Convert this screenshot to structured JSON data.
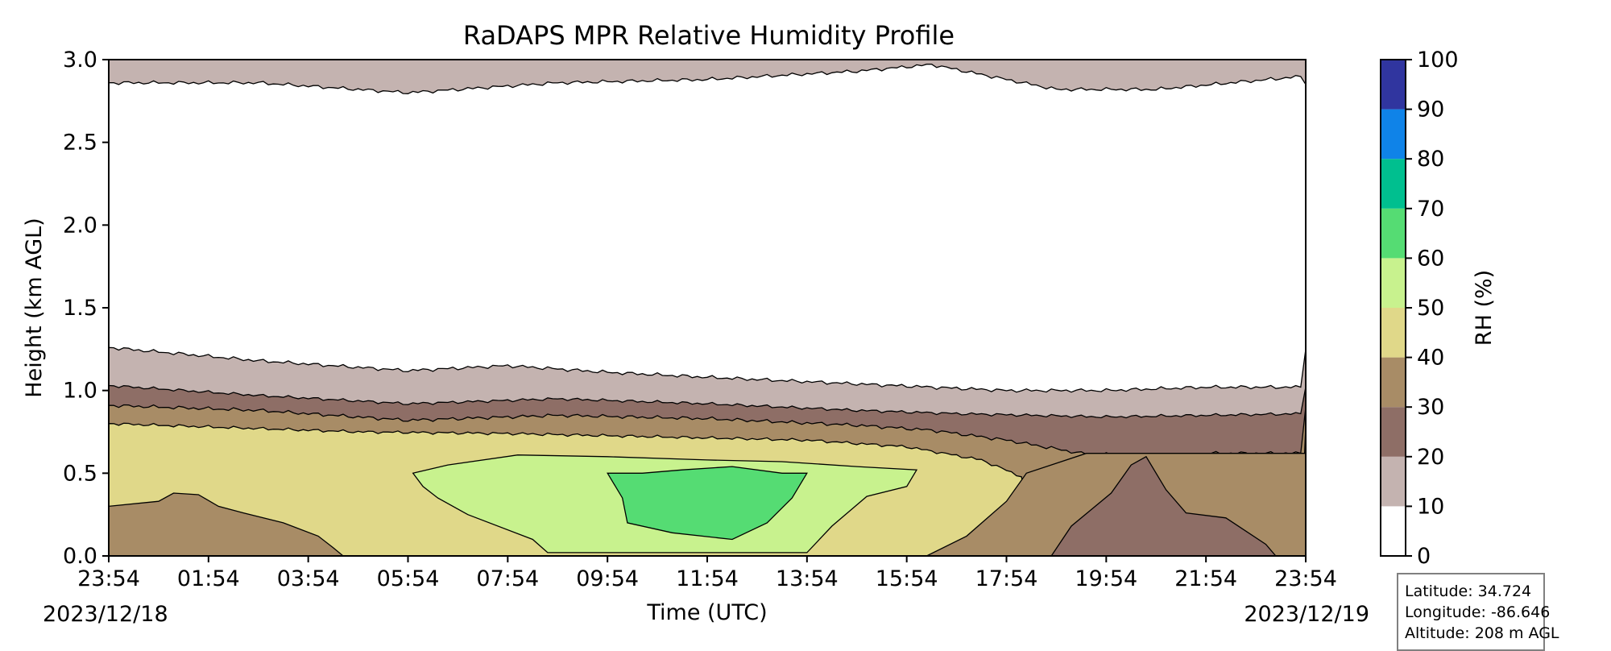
{
  "chart_data": {
    "type": "heatmap",
    "title": "RaDAPS MPR Relative Humidity Profile",
    "xlabel": "Time (UTC)",
    "ylabel": "Height (km AGL)",
    "x_tick_labels": [
      "23:54",
      "01:54",
      "03:54",
      "05:54",
      "07:54",
      "09:54",
      "11:54",
      "13:54",
      "15:54",
      "17:54",
      "19:54",
      "21:54",
      "23:54"
    ],
    "x_hours": [
      0,
      2,
      4,
      6,
      8,
      10,
      12,
      14,
      16,
      18,
      20,
      22,
      24
    ],
    "start_date": "2023/12/18",
    "end_date": "2023/12/19",
    "ylim": [
      0,
      3
    ],
    "y_ticks": [
      0.0,
      0.5,
      1.0,
      1.5,
      2.0,
      2.5,
      3.0
    ],
    "y_tick_labels": [
      "0.0",
      "0.5",
      "1.0",
      "1.5",
      "2.0",
      "2.5",
      "3.0"
    ],
    "colorbar": {
      "label": "RH (%)",
      "levels": [
        0,
        10,
        20,
        30,
        40,
        50,
        60,
        70,
        80,
        90,
        100
      ],
      "tick_labels": [
        "0",
        "10",
        "20",
        "30",
        "40",
        "50",
        "60",
        "70",
        "80",
        "90",
        "100"
      ],
      "colors": [
        "#ffffff",
        "#c4b3b0",
        "#8e6e66",
        "#a88c66",
        "#e0d889",
        "#c8f28e",
        "#55dc73",
        "#00bf8f",
        "#0f83e8",
        "#30359f"
      ]
    },
    "rh_layers": [
      {
        "range": "0-10",
        "description": "dry layer, about 1.2 to 2.85 km"
      },
      {
        "range": "10-20",
        "description": "about 1.0-1.2 km and above 2.85 km"
      },
      {
        "range": "20-30",
        "description": "about 0.9-1.0 km; surface to 0.6 km after 19:54"
      },
      {
        "range": "30-40",
        "description": "about 0.75-0.9 km; near surface at start"
      },
      {
        "range": "40-50",
        "description": "about 0-0.75 km"
      },
      {
        "range": "50-60",
        "description": "about 0-0.55 km, 06:00 to 16:30"
      },
      {
        "range": "60-70",
        "description": "about 0.1-0.5 km, 10:00 to 14:00"
      }
    ]
  },
  "info_box": {
    "latitude": "Latitude: 34.724",
    "longitude": "Longitude: -86.646",
    "altitude": "Altitude: 208 m AGL"
  }
}
